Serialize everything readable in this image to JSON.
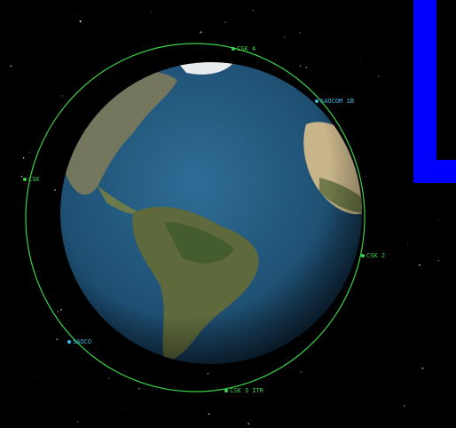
{
  "satellites": [
    {
      "label": "CSK 4"
    },
    {
      "label": "SAOCOM 1B"
    },
    {
      "label": "CSK"
    },
    {
      "label": "CSK 2"
    },
    {
      "label": "SAOCO"
    },
    {
      "label": "CSK 3 ITR"
    }
  ]
}
